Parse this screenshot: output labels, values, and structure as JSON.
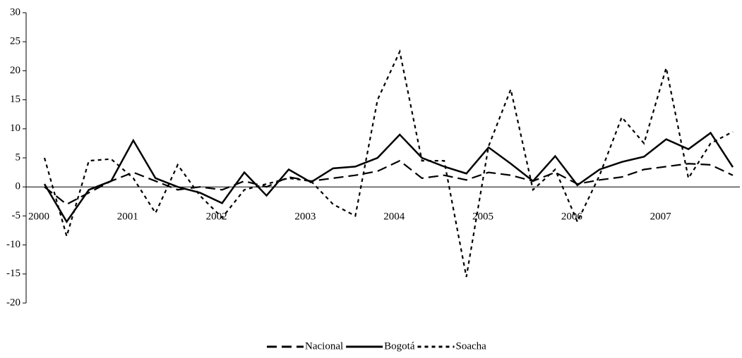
{
  "chart_data": {
    "type": "line",
    "categories": [
      "2000",
      null,
      null,
      null,
      "2001",
      null,
      null,
      null,
      "2002",
      null,
      null,
      null,
      "2003",
      null,
      null,
      null,
      "2004",
      null,
      null,
      null,
      "2005",
      null,
      null,
      null,
      "2006",
      null,
      null,
      null,
      "2007",
      null,
      null,
      null
    ],
    "series": [
      {
        "name": "Nacional",
        "color": "#000000",
        "style": "dashed",
        "values": [
          0,
          -3,
          -1,
          1,
          2.5,
          1,
          -0.5,
          0,
          -0.5,
          1,
          0,
          1.7,
          1,
          1.5,
          2,
          2.7,
          4.5,
          1.5,
          2,
          1.2,
          2.5,
          2,
          1,
          2.5,
          0.5,
          1.2,
          1.7,
          3,
          3.5,
          4,
          3.8,
          2
        ]
      },
      {
        "name": "Bogotá",
        "color": "#000000",
        "style": "solid",
        "values": [
          0.5,
          -6,
          -0.5,
          1,
          8,
          1.5,
          0,
          -1,
          -2.8,
          2.5,
          -1.5,
          3,
          0.8,
          3.2,
          3.5,
          5,
          9,
          5,
          3.5,
          2.3,
          6.8,
          4,
          1,
          5.3,
          0.3,
          3,
          4.3,
          5.2,
          8.2,
          6.5,
          9.3,
          3.4
        ]
      },
      {
        "name": "Soacha",
        "color": "#000000",
        "style": "dotted",
        "values": [
          5,
          -8.5,
          4.5,
          4.8,
          1.5,
          -4.5,
          3.8,
          -1.5,
          -5.3,
          -0.5,
          0.5,
          1.5,
          1,
          -3,
          -5,
          15,
          23.3,
          4.5,
          4.5,
          -15.5,
          7,
          16.8,
          -0.5,
          3,
          -6,
          2,
          12,
          7.5,
          20.5,
          1.5,
          7.5,
          9.5
        ]
      }
    ],
    "ylim": [
      -20,
      30
    ],
    "yticks": [
      -20,
      -15,
      -10,
      -5,
      0,
      5,
      10,
      15,
      20,
      25,
      30
    ],
    "grid": false,
    "legend": "bottom"
  }
}
